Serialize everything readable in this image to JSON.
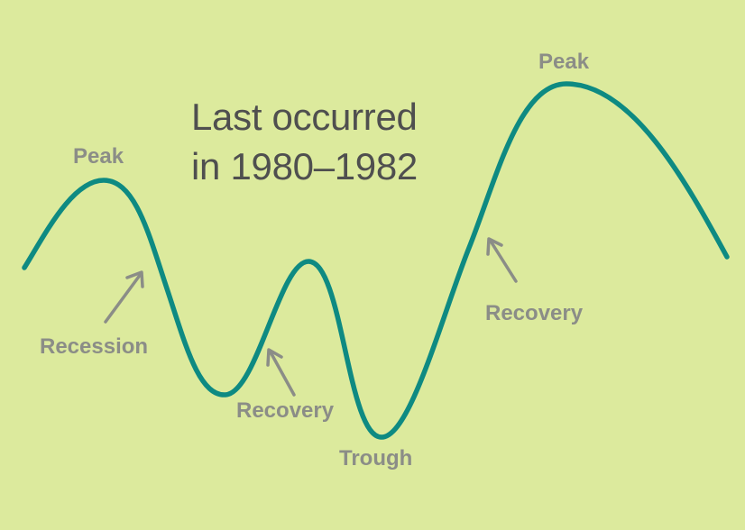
{
  "headline": {
    "line1": "Last occurred",
    "line2": "in 1980–1982"
  },
  "labels": {
    "peak_left": "Peak",
    "peak_right": "Peak",
    "recession": "Recession",
    "recovery_small": "Recovery",
    "trough": "Trough",
    "recovery_main": "Recovery"
  },
  "colors": {
    "background": "#dcea9d",
    "curve": "#0e8a82",
    "label": "#8b8d87",
    "arrow": "#8b8d87",
    "headline": "#4f4f4f"
  }
}
